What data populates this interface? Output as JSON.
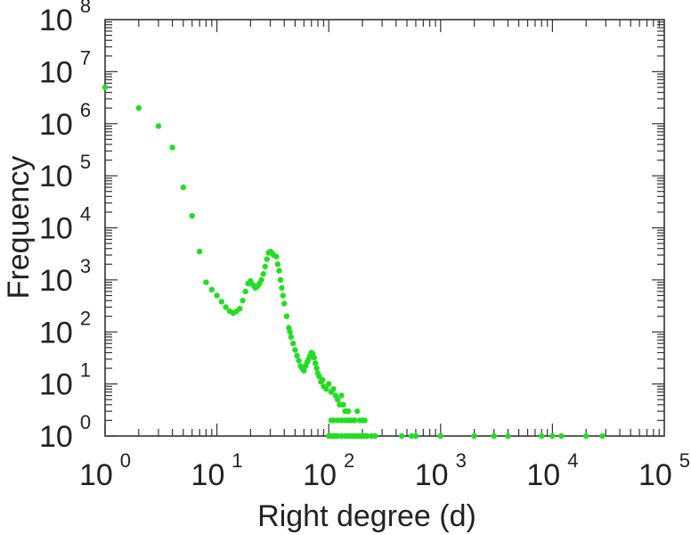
{
  "chart_data": {
    "type": "scatter",
    "title": "",
    "xlabel": "Right degree (d)",
    "ylabel": "Frequency",
    "xscale": "log",
    "yscale": "log",
    "xlim": [
      1,
      100000
    ],
    "ylim": [
      1,
      100000000
    ],
    "x_ticks": [
      {
        "base": "10",
        "exp": "0"
      },
      {
        "base": "10",
        "exp": "1"
      },
      {
        "base": "10",
        "exp": "2"
      },
      {
        "base": "10",
        "exp": "3"
      },
      {
        "base": "10",
        "exp": "4"
      },
      {
        "base": "10",
        "exp": "5"
      }
    ],
    "y_ticks": [
      {
        "base": "10",
        "exp": "0"
      },
      {
        "base": "10",
        "exp": "1"
      },
      {
        "base": "10",
        "exp": "2"
      },
      {
        "base": "10",
        "exp": "3"
      },
      {
        "base": "10",
        "exp": "4"
      },
      {
        "base": "10",
        "exp": "5"
      },
      {
        "base": "10",
        "exp": "6"
      },
      {
        "base": "10",
        "exp": "7"
      },
      {
        "base": "10",
        "exp": "8"
      }
    ],
    "grid": false,
    "legend": "none",
    "marker_color": "#22dd22",
    "series": [
      {
        "points": [
          [
            1,
            5000000
          ],
          [
            2,
            2000000
          ],
          [
            3,
            900000
          ],
          [
            4,
            350000
          ],
          [
            5,
            60000
          ],
          [
            6,
            17000
          ],
          [
            7,
            3500
          ],
          [
            8,
            900
          ],
          [
            9,
            650
          ],
          [
            10,
            500
          ],
          [
            11,
            380
          ],
          [
            12,
            300
          ],
          [
            13,
            250
          ],
          [
            14,
            230
          ],
          [
            15,
            250
          ],
          [
            16,
            280
          ],
          [
            17,
            400
          ],
          [
            18,
            600
          ],
          [
            19,
            850
          ],
          [
            20,
            950
          ],
          [
            21,
            800
          ],
          [
            22,
            700
          ],
          [
            23,
            750
          ],
          [
            24,
            850
          ],
          [
            25,
            1000
          ],
          [
            26,
            1300
          ],
          [
            27,
            1800
          ],
          [
            28,
            2500
          ],
          [
            29,
            3300
          ],
          [
            30,
            3500
          ],
          [
            31,
            3300
          ],
          [
            32,
            3000
          ],
          [
            34,
            2800
          ],
          [
            35,
            2000
          ],
          [
            36,
            1500
          ],
          [
            37,
            1000
          ],
          [
            38,
            700
          ],
          [
            39,
            500
          ],
          [
            40,
            350
          ],
          [
            42,
            200
          ],
          [
            44,
            120
          ],
          [
            45,
            100
          ],
          [
            46,
            80
          ],
          [
            48,
            60
          ],
          [
            50,
            45
          ],
          [
            52,
            35
          ],
          [
            54,
            28
          ],
          [
            56,
            22
          ],
          [
            58,
            20
          ],
          [
            60,
            18
          ],
          [
            62,
            22
          ],
          [
            64,
            26
          ],
          [
            66,
            30
          ],
          [
            68,
            35
          ],
          [
            70,
            40
          ],
          [
            72,
            38
          ],
          [
            74,
            32
          ],
          [
            76,
            25
          ],
          [
            78,
            20
          ],
          [
            80,
            16
          ],
          [
            82,
            14
          ],
          [
            85,
            11
          ],
          [
            88,
            12
          ],
          [
            90,
            9
          ],
          [
            95,
            8
          ],
          [
            100,
            10
          ],
          [
            105,
            7
          ],
          [
            110,
            8
          ],
          [
            115,
            6
          ],
          [
            120,
            5
          ],
          [
            125,
            4
          ],
          [
            130,
            6
          ],
          [
            135,
            4
          ],
          [
            140,
            3
          ],
          [
            145,
            3
          ],
          [
            150,
            3
          ],
          [
            155,
            2
          ],
          [
            160,
            2
          ],
          [
            170,
            2
          ],
          [
            180,
            3
          ],
          [
            190,
            2
          ],
          [
            200,
            2
          ],
          [
            105,
            2
          ],
          [
            110,
            2
          ],
          [
            120,
            2
          ],
          [
            130,
            2
          ],
          [
            140,
            2
          ],
          [
            150,
            2
          ],
          [
            170,
            2
          ],
          [
            190,
            2
          ],
          [
            210,
            2
          ],
          [
            100,
            1
          ],
          [
            105,
            1
          ],
          [
            110,
            1
          ],
          [
            115,
            1
          ],
          [
            120,
            1
          ],
          [
            130,
            1
          ],
          [
            140,
            1
          ],
          [
            150,
            1
          ],
          [
            160,
            1
          ],
          [
            170,
            1
          ],
          [
            180,
            1
          ],
          [
            190,
            1
          ],
          [
            200,
            1
          ],
          [
            210,
            1
          ],
          [
            220,
            1
          ],
          [
            240,
            1
          ],
          [
            260,
            1
          ],
          [
            450,
            1
          ],
          [
            550,
            1
          ],
          [
            600,
            1
          ],
          [
            1000,
            1
          ],
          [
            2000,
            1
          ],
          [
            3000,
            1
          ],
          [
            4000,
            1
          ],
          [
            8000,
            1
          ],
          [
            10000,
            1
          ],
          [
            12000,
            1
          ],
          [
            20000,
            1
          ],
          [
            28000,
            1
          ]
        ]
      }
    ]
  }
}
